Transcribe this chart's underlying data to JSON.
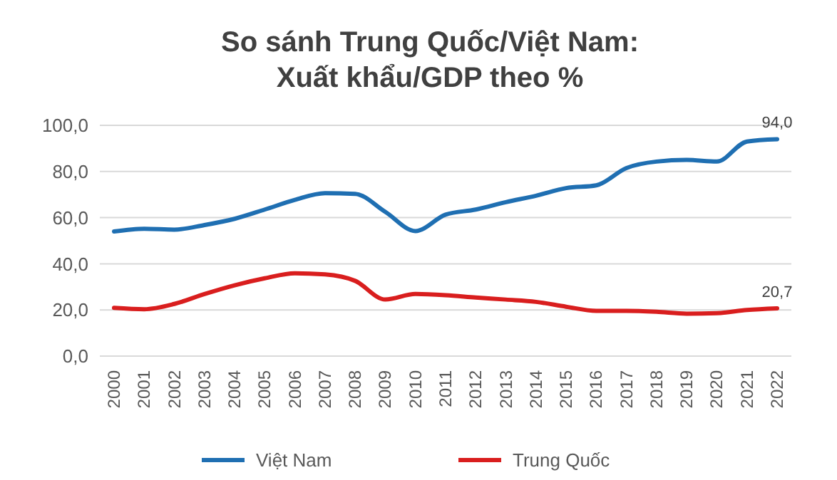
{
  "chart_data": {
    "type": "line",
    "title": "So sánh Trung Quốc/Việt Nam:\nXuất khẩu/GDP theo %",
    "categories": [
      "2000",
      "2001",
      "2002",
      "2003",
      "2004",
      "2005",
      "2006",
      "2007",
      "2008",
      "2009",
      "2010",
      "2011",
      "2012",
      "2013",
      "2014",
      "2015",
      "2016",
      "2017",
      "2018",
      "2019",
      "2020",
      "2021",
      "2022"
    ],
    "series": [
      {
        "name": "Việt Nam",
        "color": "#1f6fb2",
        "values": [
          54,
          55.2,
          54.8,
          56.8,
          59.5,
          63.5,
          67.7,
          70.6,
          70.3,
          62.5,
          54.2,
          61.3,
          63.5,
          66.7,
          69.5,
          72.8,
          74,
          81.5,
          84.3,
          85,
          84.3,
          93,
          94.0
        ],
        "value_labels": [
          null,
          null,
          null,
          null,
          null,
          null,
          null,
          null,
          null,
          null,
          null,
          null,
          null,
          null,
          null,
          null,
          null,
          null,
          null,
          null,
          null,
          null,
          "94,0"
        ]
      },
      {
        "name": "Trung Quốc",
        "color": "#d91e1e",
        "values": [
          20.9,
          20.3,
          22.6,
          26.9,
          30.7,
          33.7,
          35.9,
          35.4,
          32.6,
          24.5,
          26.9,
          26.4,
          25.4,
          24.5,
          23.5,
          21.4,
          19.6,
          19.6,
          19.2,
          18.4,
          18.6,
          20.0,
          20.7
        ],
        "value_labels": [
          null,
          null,
          null,
          null,
          null,
          null,
          null,
          null,
          null,
          null,
          null,
          null,
          null,
          null,
          null,
          null,
          null,
          null,
          null,
          null,
          null,
          null,
          "20,7"
        ]
      }
    ],
    "ylim": [
      0,
      100
    ],
    "yticks": [
      {
        "value": 0,
        "label": "0,0"
      },
      {
        "value": 20,
        "label": "20,0"
      },
      {
        "value": 40,
        "label": "40,0"
      },
      {
        "value": 60,
        "label": "60,0"
      },
      {
        "value": 80,
        "label": "80,0"
      },
      {
        "value": 100,
        "label": "100,0"
      }
    ],
    "grid": "y",
    "legend": "bottom",
    "marker": "none",
    "line_style": "solid"
  }
}
